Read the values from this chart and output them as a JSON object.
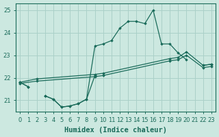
{
  "background_color": "#cce8e0",
  "grid_color": "#aad0c8",
  "line_color": "#1a6b5a",
  "xlabel": "Humidex (Indice chaleur)",
  "ylim": [
    20.5,
    25.3
  ],
  "yticks": [
    21,
    22,
    23,
    24,
    25
  ],
  "xticks": [
    0,
    1,
    2,
    3,
    4,
    5,
    6,
    7,
    8,
    9,
    10,
    11,
    12,
    13,
    14,
    15,
    16,
    17,
    18,
    19,
    20,
    21,
    22,
    23
  ],
  "line_zigzag_x": [
    0,
    1,
    2,
    3,
    4,
    5,
    6,
    7,
    8,
    9,
    10,
    11,
    12,
    13,
    14,
    15,
    16,
    17,
    18,
    19,
    20,
    21,
    22,
    23
  ],
  "line_zigzag_y": [
    21.8,
    21.6,
    null,
    21.2,
    21.05,
    20.7,
    20.75,
    20.85,
    21.05,
    23.4,
    23.5,
    23.65,
    24.2,
    24.5,
    24.5,
    24.4,
    25.0,
    23.5,
    23.5,
    23.1,
    22.8,
    null,
    22.55,
    22.6
  ],
  "line_lower_x": [
    0,
    1,
    2,
    3,
    4,
    5,
    6,
    7,
    8,
    9
  ],
  "line_lower_y": [
    21.8,
    21.6,
    null,
    21.2,
    21.05,
    20.7,
    20.75,
    20.85,
    21.05,
    22.1
  ],
  "line_trend1_x": [
    0,
    2,
    9,
    10,
    18,
    19,
    20,
    22,
    23
  ],
  "line_trend1_y": [
    21.8,
    21.95,
    22.15,
    22.2,
    22.85,
    22.9,
    23.15,
    22.55,
    22.6
  ],
  "line_trend2_x": [
    0,
    2,
    9,
    10,
    18,
    19,
    20,
    22,
    23
  ],
  "line_trend2_y": [
    21.75,
    21.85,
    22.05,
    22.1,
    22.75,
    22.8,
    23.0,
    22.45,
    22.5
  ]
}
